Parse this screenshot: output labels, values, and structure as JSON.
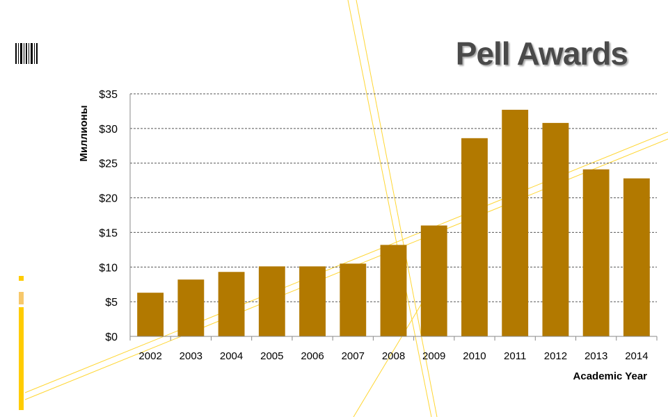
{
  "slide": {
    "title": "Pell Awards"
  },
  "colors": {
    "bar": "#b27900",
    "accent": "#ffcc00",
    "accent_light": "#f7c86b",
    "grid": "#555555",
    "text": "#000000"
  },
  "chart_data": {
    "type": "bar",
    "title": "",
    "xlabel": "Academic Year",
    "ylabel": "Миллионы",
    "categories": [
      "2002",
      "2003",
      "2004",
      "2005",
      "2006",
      "2007",
      "2008",
      "2009",
      "2010",
      "2011",
      "2012",
      "2013",
      "2014"
    ],
    "series": [
      {
        "values": [
          6.3,
          8.2,
          9.3,
          10.1,
          10.1,
          10.5,
          13.2,
          16.0,
          28.6,
          32.7,
          30.8,
          24.1,
          22.8
        ]
      }
    ],
    "ylim": [
      0,
      35
    ],
    "yticks": [
      0,
      5,
      10,
      15,
      20,
      25,
      30,
      35
    ],
    "ytick_labels": [
      "$0",
      "$5",
      "$10",
      "$15",
      "$20",
      "$25",
      "$30",
      "$35"
    ],
    "grid": true,
    "legend": "none"
  }
}
